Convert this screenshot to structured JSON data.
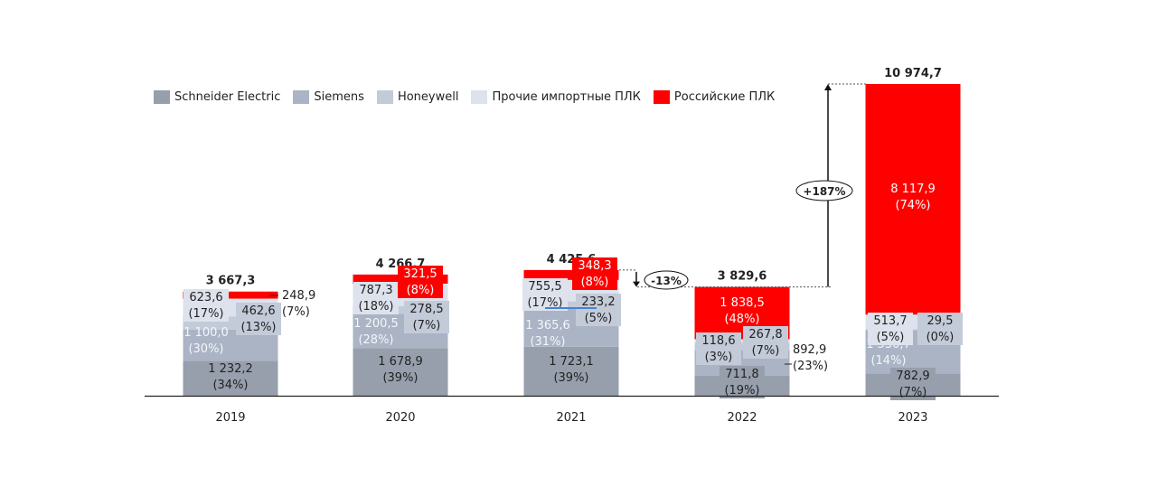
{
  "chart_data": {
    "type": "bar",
    "stacked": true,
    "title": "",
    "xlabel": "",
    "ylabel": "",
    "categories": [
      "2019",
      "2020",
      "2021",
      "2022",
      "2023"
    ],
    "series": [
      {
        "name": "Schneider Electric",
        "color": "#979fac",
        "values": [
          1232.2,
          1678.9,
          1723.1,
          711.8,
          782.9
        ],
        "value_labels": [
          "1 232,2",
          "1 678,9",
          "1 723,1",
          "711,8",
          "782,9"
        ],
        "pct_labels": [
          "(34%)",
          "(39%)",
          "(39%)",
          "(19%)",
          "(7%)"
        ]
      },
      {
        "name": "Siemens",
        "color": "#aab4c5",
        "values": [
          1100.0,
          1200.5,
          1365.6,
          892.9,
          1530.7
        ],
        "value_labels": [
          "1 100,0",
          "1 200,5",
          "1 365,6",
          "892,9",
          "1 530,7"
        ],
        "pct_labels": [
          "(30%)",
          "(28%)",
          "(31%)",
          "(23%)",
          "(14%)"
        ]
      },
      {
        "name": "Honeywell",
        "color": "#c3cbd9",
        "values": [
          462.6,
          278.5,
          233.2,
          267.8,
          29.5
        ],
        "value_labels": [
          "462,6",
          "278,5",
          "233,2",
          "267,8",
          "29,5"
        ],
        "pct_labels": [
          "(13%)",
          "(7%)",
          "(5%)",
          "(7%)",
          "(0%)"
        ]
      },
      {
        "name": "Прочие импортные ПЛК",
        "color": "#dde2ec",
        "values": [
          623.6,
          787.3,
          755.5,
          118.6,
          513.7
        ],
        "value_labels": [
          "623,6",
          "787,3",
          "755,5",
          "118,6",
          "513,7"
        ],
        "pct_labels": [
          "(17%)",
          "(18%)",
          "(17%)",
          "(3%)",
          "(5%)"
        ]
      },
      {
        "name": "Российские ПЛК",
        "color": "#ff0000",
        "values": [
          248.9,
          321.5,
          348.3,
          1838.5,
          8117.9
        ],
        "value_labels": [
          "248,9",
          "321,5",
          "348,3",
          "1 838,5",
          "8 117,9"
        ],
        "pct_labels": [
          "(7%)",
          "(8%)",
          "(8%)",
          "(48%)",
          "(74%)"
        ]
      }
    ],
    "totals": [
      3667.3,
      4266.7,
      4425.6,
      3829.6,
      10974.7
    ],
    "total_labels": [
      "3 667,3",
      "4 266,7",
      "4 425,6",
      "3 829,6",
      "10 974,7"
    ],
    "annotations": [
      {
        "text": "-13%",
        "from": "2021",
        "to": "2022"
      },
      {
        "text": "+187%",
        "from": "2022",
        "to": "2023"
      }
    ],
    "legend_position": "top-left",
    "grid": false
  }
}
